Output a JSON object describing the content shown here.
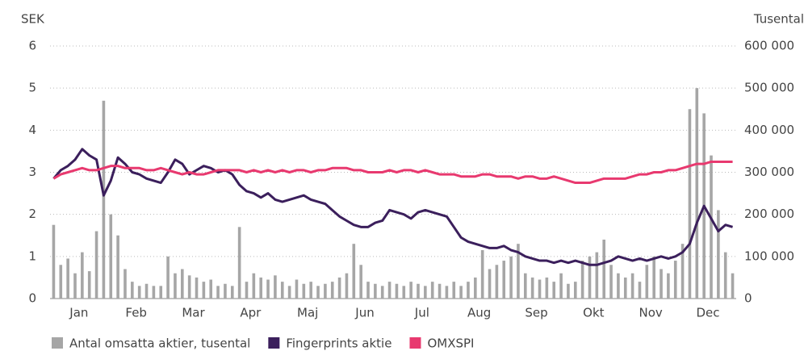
{
  "chart_data": {
    "type": "combo",
    "y_label": "SEK",
    "y2_label": "Tusental",
    "categories": [
      null,
      null,
      null,
      null,
      "Jan",
      null,
      null,
      null,
      null,
      null,
      null,
      null,
      "Feb",
      null,
      null,
      null,
      null,
      null,
      null,
      null,
      "Mar",
      null,
      null,
      null,
      null,
      null,
      null,
      null,
      "Apr",
      null,
      null,
      null,
      null,
      null,
      null,
      null,
      "Maj",
      null,
      null,
      null,
      null,
      null,
      null,
      null,
      "Jun",
      null,
      null,
      null,
      null,
      null,
      null,
      null,
      "Jul",
      null,
      null,
      null,
      null,
      null,
      null,
      null,
      "Aug",
      null,
      null,
      null,
      null,
      null,
      null,
      null,
      "Sep",
      null,
      null,
      null,
      null,
      null,
      null,
      null,
      "Okt",
      null,
      null,
      null,
      null,
      null,
      null,
      null,
      "Nov",
      null,
      null,
      null,
      null,
      null,
      null,
      null,
      "Dec",
      null,
      null,
      null
    ],
    "ylim": [
      0,
      6
    ],
    "yticks": [
      0,
      1,
      2,
      3,
      4,
      5,
      6
    ],
    "y2lim": [
      0,
      600000
    ],
    "y2ticks": [
      0,
      {
        "value": 100000,
        "label": "100 000"
      },
      {
        "value": 200000,
        "label": "200 000"
      },
      {
        "value": 300000,
        "label": "300 000"
      },
      {
        "value": 400000,
        "label": "400 000"
      },
      {
        "value": 500000,
        "label": "500 000"
      },
      {
        "value": 600000,
        "label": "600 000"
      }
    ],
    "grid": true,
    "series": [
      {
        "name": "Antal omsatta aktier, tusental",
        "type": "bar",
        "axis": "y2",
        "color": "#a6a6a6",
        "values": [
          175000,
          80000,
          95000,
          60000,
          110000,
          65000,
          160000,
          470000,
          200000,
          150000,
          70000,
          40000,
          30000,
          35000,
          30000,
          30000,
          100000,
          60000,
          70000,
          55000,
          50000,
          40000,
          45000,
          30000,
          35000,
          30000,
          170000,
          40000,
          60000,
          50000,
          45000,
          55000,
          40000,
          30000,
          45000,
          35000,
          40000,
          30000,
          35000,
          40000,
          50000,
          60000,
          130000,
          80000,
          40000,
          35000,
          30000,
          40000,
          35000,
          30000,
          40000,
          35000,
          30000,
          40000,
          35000,
          30000,
          40000,
          30000,
          40000,
          50000,
          115000,
          70000,
          80000,
          90000,
          100000,
          130000,
          60000,
          50000,
          45000,
          50000,
          40000,
          60000,
          35000,
          40000,
          90000,
          100000,
          110000,
          140000,
          80000,
          60000,
          50000,
          60000,
          40000,
          80000,
          100000,
          70000,
          60000,
          90000,
          130000,
          450000,
          500000,
          440000,
          340000,
          210000,
          110000,
          60000
        ]
      },
      {
        "name": "Fingerprints aktie",
        "type": "line",
        "color": "#3b1f5c",
        "values": [
          2.85,
          3.05,
          3.15,
          3.3,
          3.55,
          3.4,
          3.3,
          2.45,
          2.8,
          3.35,
          3.2,
          3.0,
          2.95,
          2.85,
          2.8,
          2.75,
          3.0,
          3.3,
          3.2,
          2.95,
          3.05,
          3.15,
          3.1,
          3.0,
          3.05,
          2.95,
          2.7,
          2.55,
          2.5,
          2.4,
          2.5,
          2.35,
          2.3,
          2.35,
          2.4,
          2.45,
          2.35,
          2.3,
          2.25,
          2.1,
          1.95,
          1.85,
          1.75,
          1.7,
          1.7,
          1.8,
          1.85,
          2.1,
          2.05,
          2.0,
          1.9,
          2.05,
          2.1,
          2.05,
          2.0,
          1.95,
          1.7,
          1.45,
          1.35,
          1.3,
          1.25,
          1.2,
          1.2,
          1.25,
          1.15,
          1.1,
          1.0,
          0.95,
          0.9,
          0.9,
          0.85,
          0.9,
          0.85,
          0.9,
          0.85,
          0.8,
          0.8,
          0.85,
          0.9,
          1.0,
          0.95,
          0.9,
          0.95,
          0.9,
          0.95,
          1.0,
          0.95,
          1.0,
          1.1,
          1.3,
          1.8,
          2.2,
          1.9,
          1.6,
          1.75,
          1.7
        ]
      },
      {
        "name": "OMXSPI",
        "type": "line",
        "color": "#e8396f",
        "values": [
          2.85,
          2.95,
          3.0,
          3.05,
          3.1,
          3.05,
          3.05,
          3.1,
          3.15,
          3.15,
          3.1,
          3.1,
          3.1,
          3.05,
          3.05,
          3.1,
          3.05,
          3.0,
          2.95,
          3.0,
          2.95,
          2.95,
          3.0,
          3.05,
          3.05,
          3.05,
          3.05,
          3.0,
          3.05,
          3.0,
          3.05,
          3.0,
          3.05,
          3.0,
          3.05,
          3.05,
          3.0,
          3.05,
          3.05,
          3.1,
          3.1,
          3.1,
          3.05,
          3.05,
          3.0,
          3.0,
          3.0,
          3.05,
          3.0,
          3.05,
          3.05,
          3.0,
          3.05,
          3.0,
          2.95,
          2.95,
          2.95,
          2.9,
          2.9,
          2.9,
          2.95,
          2.95,
          2.9,
          2.9,
          2.9,
          2.85,
          2.9,
          2.9,
          2.85,
          2.85,
          2.9,
          2.85,
          2.8,
          2.75,
          2.75,
          2.75,
          2.8,
          2.85,
          2.85,
          2.85,
          2.85,
          2.9,
          2.95,
          2.95,
          3.0,
          3.0,
          3.05,
          3.05,
          3.1,
          3.15,
          3.2,
          3.2,
          3.25,
          3.25,
          3.25,
          3.25
        ]
      }
    ]
  }
}
